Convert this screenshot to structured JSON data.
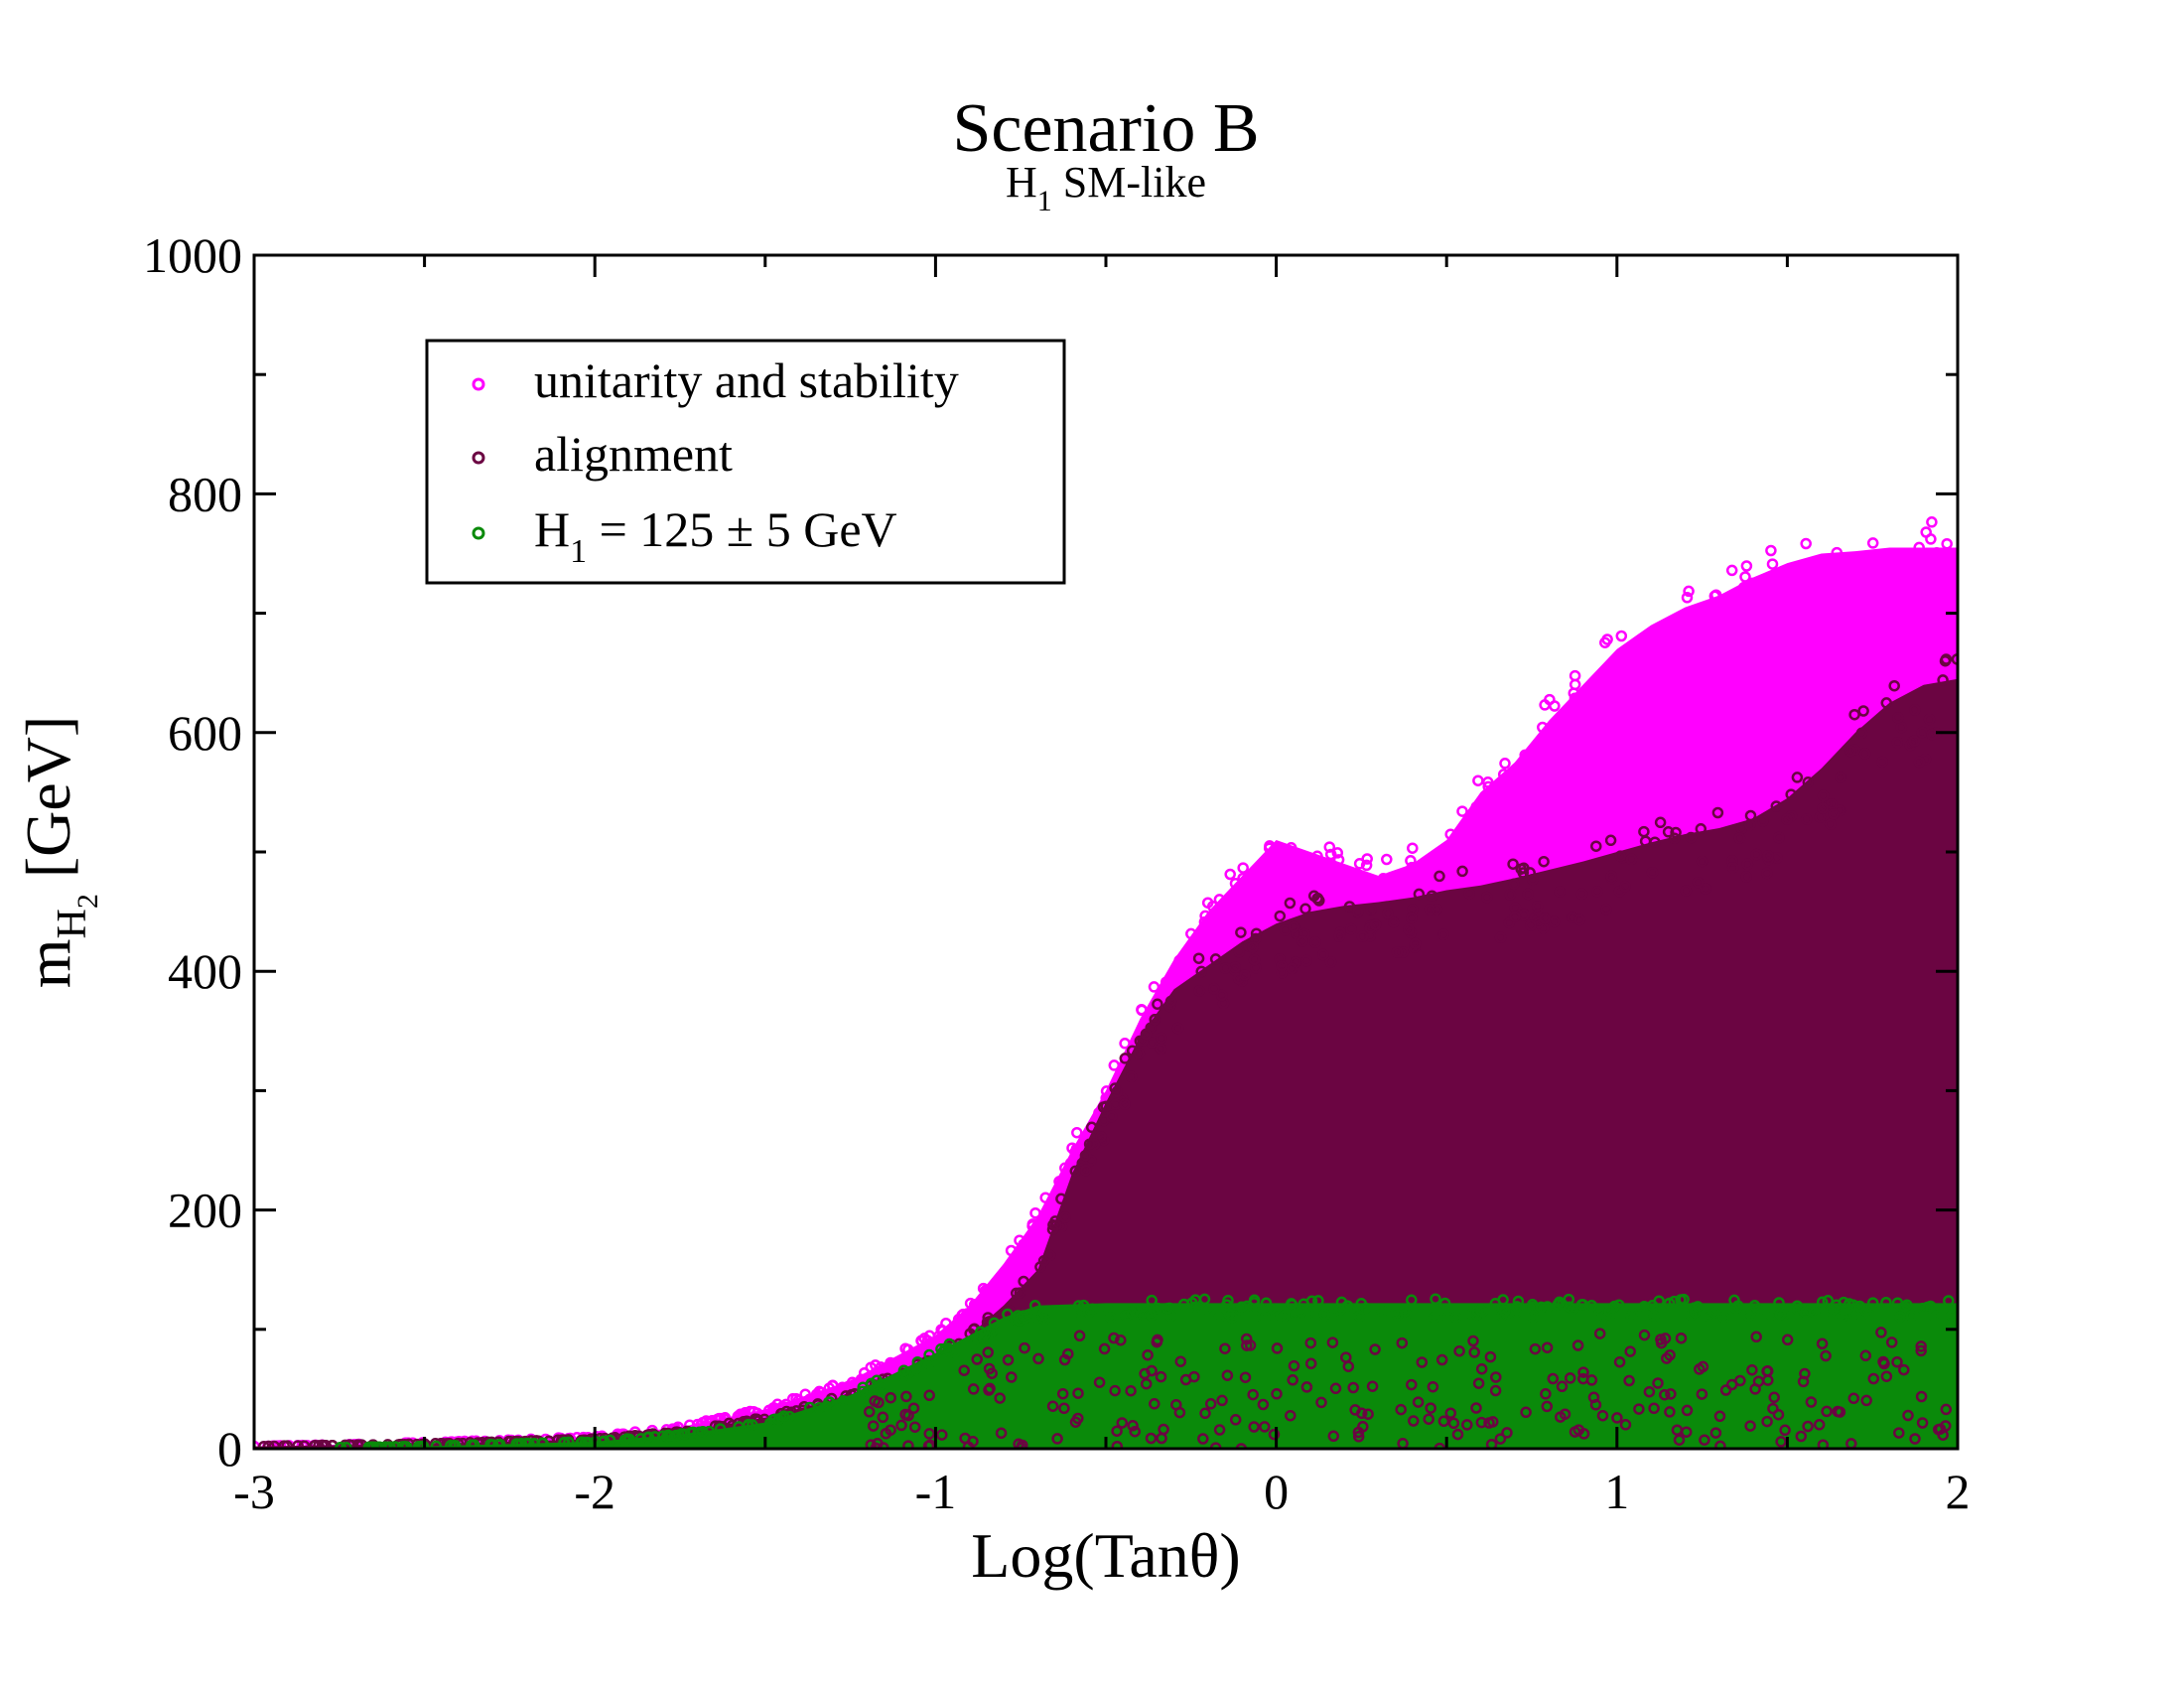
{
  "chart_data": {
    "type": "scatter",
    "title": "Scenario B",
    "subtitle_main": "H",
    "subtitle_sub": "1",
    "subtitle_rest": " SM-like",
    "xlabel": "Log(Tanθ)",
    "ylabel_main": "m",
    "ylabel_sub1": "H",
    "ylabel_sub2": "2",
    "ylabel_rest": " [GeV]",
    "xlim": [
      -3,
      2
    ],
    "ylim": [
      0,
      1000
    ],
    "x_ticks": [
      -3,
      -2,
      -1,
      0,
      1,
      2
    ],
    "y_ticks": [
      0,
      200,
      400,
      600,
      800,
      1000
    ],
    "grid": false,
    "legend_position": "top-left",
    "series": [
      {
        "name": "unitarity and stability",
        "color": "#ff00ff",
        "envelope": {
          "x": [
            -3.0,
            -2.5,
            -2.0,
            -1.75,
            -1.5,
            -1.25,
            -1.0,
            -0.9,
            -0.8,
            -0.7,
            -0.6,
            -0.5,
            -0.4,
            -0.3,
            -0.2,
            -0.1,
            0.0,
            0.1,
            0.2,
            0.3,
            0.4,
            0.5,
            0.6,
            0.7,
            0.8,
            0.9,
            1.0,
            1.1,
            1.2,
            1.3,
            1.4,
            1.5,
            1.6,
            1.7,
            1.8,
            1.9,
            2.0
          ],
          "y_upper": [
            2,
            5,
            10,
            18,
            33,
            57,
            95,
            120,
            155,
            195,
            250,
            300,
            360,
            410,
            450,
            480,
            510,
            500,
            490,
            480,
            490,
            510,
            550,
            575,
            610,
            640,
            670,
            690,
            705,
            715,
            730,
            742,
            750,
            752,
            755,
            755,
            755
          ]
        }
      },
      {
        "name": "alignment",
        "color": "#6b0542",
        "envelope": {
          "x": [
            -3.0,
            -2.5,
            -2.0,
            -1.75,
            -1.5,
            -1.25,
            -1.0,
            -0.9,
            -0.8,
            -0.7,
            -0.6,
            -0.5,
            -0.4,
            -0.3,
            -0.2,
            -0.1,
            0.0,
            0.1,
            0.2,
            0.3,
            0.4,
            0.5,
            0.6,
            0.7,
            0.8,
            0.9,
            1.0,
            1.1,
            1.2,
            1.3,
            1.4,
            1.5,
            1.6,
            1.7,
            1.8,
            1.9,
            2.0
          ],
          "y_upper": [
            2,
            4,
            8,
            14,
            26,
            45,
            75,
            95,
            120,
            150,
            230,
            290,
            345,
            385,
            405,
            425,
            440,
            450,
            455,
            458,
            462,
            468,
            472,
            478,
            485,
            492,
            500,
            508,
            515,
            520,
            528,
            545,
            570,
            600,
            625,
            640,
            645
          ]
        }
      },
      {
        "name": "H1 = 125 ± 5 GeV",
        "legend_main": "H",
        "legend_sub": "1",
        "legend_rest": "  = 125 ± 5 GeV",
        "color": "#0a8a0a",
        "envelope": {
          "x": [
            -3.0,
            -2.5,
            -2.0,
            -1.75,
            -1.5,
            -1.25,
            -1.0,
            -0.9,
            -0.8,
            -0.7,
            -0.5,
            0.0,
            0.5,
            1.0,
            1.5,
            2.0
          ],
          "y_upper": [
            0,
            2,
            6,
            12,
            22,
            45,
            80,
            95,
            110,
            120,
            122,
            122,
            122,
            122,
            122,
            122
          ]
        }
      }
    ]
  }
}
